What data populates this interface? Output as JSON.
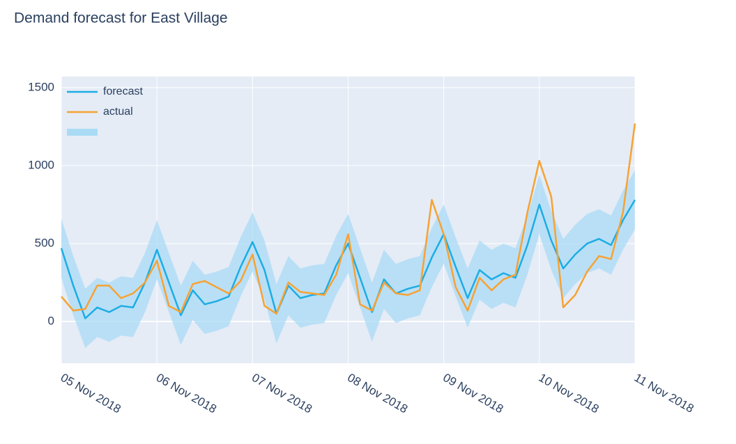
{
  "chart_data": {
    "type": "line",
    "title": "Demand forecast for East Village",
    "x": [
      "2018-11-05 00:00",
      "2018-11-05 03:00",
      "2018-11-05 06:00",
      "2018-11-05 09:00",
      "2018-11-05 12:00",
      "2018-11-05 15:00",
      "2018-11-05 18:00",
      "2018-11-05 21:00",
      "2018-11-06 00:00",
      "2018-11-06 03:00",
      "2018-11-06 06:00",
      "2018-11-06 09:00",
      "2018-11-06 12:00",
      "2018-11-06 15:00",
      "2018-11-06 18:00",
      "2018-11-06 21:00",
      "2018-11-07 00:00",
      "2018-11-07 03:00",
      "2018-11-07 06:00",
      "2018-11-07 09:00",
      "2018-11-07 12:00",
      "2018-11-07 15:00",
      "2018-11-07 18:00",
      "2018-11-07 21:00",
      "2018-11-08 00:00",
      "2018-11-08 03:00",
      "2018-11-08 06:00",
      "2018-11-08 09:00",
      "2018-11-08 12:00",
      "2018-11-08 15:00",
      "2018-11-08 18:00",
      "2018-11-08 21:00",
      "2018-11-09 00:00",
      "2018-11-09 03:00",
      "2018-11-09 06:00",
      "2018-11-09 09:00",
      "2018-11-09 12:00",
      "2018-11-09 15:00",
      "2018-11-09 18:00",
      "2018-11-09 21:00",
      "2018-11-10 00:00",
      "2018-11-10 03:00",
      "2018-11-10 06:00",
      "2018-11-10 09:00",
      "2018-11-10 12:00",
      "2018-11-10 15:00",
      "2018-11-10 18:00",
      "2018-11-10 21:00",
      "2018-11-11 00:00"
    ],
    "series": [
      {
        "name": "forecast",
        "color": "#1cade4",
        "values": [
          470,
          230,
          20,
          90,
          60,
          100,
          90,
          250,
          460,
          250,
          40,
          200,
          110,
          130,
          160,
          350,
          510,
          330,
          50,
          230,
          150,
          170,
          180,
          360,
          500,
          280,
          60,
          270,
          180,
          210,
          230,
          410,
          560,
          350,
          150,
          330,
          270,
          310,
          280,
          490,
          750,
          520,
          340,
          430,
          500,
          530,
          490,
          650,
          780
        ]
      },
      {
        "name": "actual",
        "color": "#f7a233",
        "values": [
          160,
          70,
          80,
          230,
          230,
          150,
          180,
          250,
          390,
          100,
          60,
          240,
          260,
          220,
          180,
          260,
          430,
          100,
          50,
          250,
          190,
          180,
          170,
          300,
          560,
          110,
          70,
          250,
          180,
          170,
          200,
          780,
          560,
          220,
          70,
          280,
          200,
          270,
          300,
          700,
          1030,
          800,
          90,
          170,
          320,
          420,
          400,
          700,
          1270
        ]
      }
    ],
    "band": {
      "color": "#a9dbf5",
      "upper": [
        660,
        420,
        210,
        280,
        250,
        290,
        280,
        440,
        650,
        440,
        230,
        390,
        300,
        320,
        350,
        540,
        700,
        520,
        240,
        420,
        340,
        360,
        370,
        550,
        690,
        470,
        250,
        460,
        370,
        400,
        420,
        600,
        750,
        540,
        340,
        520,
        460,
        500,
        470,
        680,
        940,
        710,
        530,
        620,
        690,
        720,
        680,
        840,
        970
      ],
      "lower": [
        280,
        40,
        -170,
        -100,
        -130,
        -90,
        -100,
        60,
        270,
        60,
        -150,
        10,
        -80,
        -60,
        -30,
        160,
        320,
        140,
        -140,
        40,
        -40,
        -20,
        -10,
        170,
        310,
        90,
        -130,
        80,
        -10,
        20,
        40,
        220,
        370,
        160,
        -40,
        140,
        80,
        120,
        90,
        300,
        560,
        330,
        150,
        240,
        310,
        340,
        300,
        460,
        590
      ]
    },
    "xlim": [
      "2018-11-05 00:00",
      "2018-11-11 00:00"
    ],
    "xticks": [
      {
        "value": "2018-11-05 00:00",
        "label": "05 Nov 2018"
      },
      {
        "value": "2018-11-06 00:00",
        "label": "06 Nov 2018"
      },
      {
        "value": "2018-11-07 00:00",
        "label": "07 Nov 2018"
      },
      {
        "value": "2018-11-08 00:00",
        "label": "08 Nov 2018"
      },
      {
        "value": "2018-11-09 00:00",
        "label": "09 Nov 2018"
      },
      {
        "value": "2018-11-10 00:00",
        "label": "10 Nov 2018"
      },
      {
        "value": "2018-11-11 00:00",
        "label": "11 Nov 2018"
      }
    ],
    "ylim": [
      -268,
      1571
    ],
    "yticks": [
      0,
      500,
      1000,
      1500
    ],
    "grid": true,
    "legend": "top-left"
  }
}
